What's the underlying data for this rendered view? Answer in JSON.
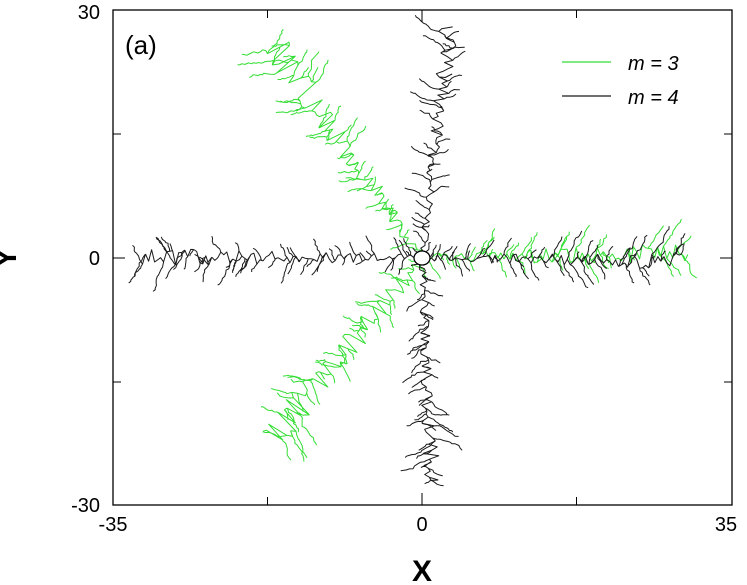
{
  "chart_data": {
    "type": "scatter",
    "panel_label": "(a)",
    "xlabel": "X",
    "ylabel": "Y",
    "xlim": [
      -35,
      35
    ],
    "ylim": [
      -30,
      30
    ],
    "x_tick_labels": [
      "-35",
      "0",
      "35"
    ],
    "y_tick_labels": [
      "30",
      "0",
      "-30"
    ],
    "x_minor_ticks": [
      -17.5,
      17.5
    ],
    "y_minor_ticks": [
      15,
      -15
    ],
    "grid": false,
    "legend_position": "top-right",
    "center_marker": {
      "x": 0,
      "y": 0,
      "shape": "ellipse"
    },
    "series": [
      {
        "name": "m = 3",
        "color": "#33dd33",
        "branches": [
          {
            "start": [
              0,
              0
            ],
            "end": [
              -17,
              26
            ],
            "spread": 2.2,
            "seed": 11
          },
          {
            "start": [
              0,
              0
            ],
            "end": [
              30,
              0.5
            ],
            "spread": 1.5,
            "seed": 12
          },
          {
            "start": [
              0,
              0
            ],
            "end": [
              -17,
              -22
            ],
            "spread": 2.4,
            "seed": 13
          }
        ]
      },
      {
        "name": "m = 4",
        "color": "#1a1a1a",
        "branches": [
          {
            "start": [
              0,
              0
            ],
            "end": [
              3,
              28
            ],
            "spread": 1.4,
            "seed": 21
          },
          {
            "start": [
              0,
              0
            ],
            "end": [
              29,
              -0.5
            ],
            "spread": 1.2,
            "seed": 22
          },
          {
            "start": [
              0,
              0
            ],
            "end": [
              -32,
              0
            ],
            "spread": 1.3,
            "seed": 23
          },
          {
            "start": [
              0,
              0
            ],
            "end": [
              1,
              -27
            ],
            "spread": 1.3,
            "seed": 24
          }
        ]
      }
    ]
  }
}
